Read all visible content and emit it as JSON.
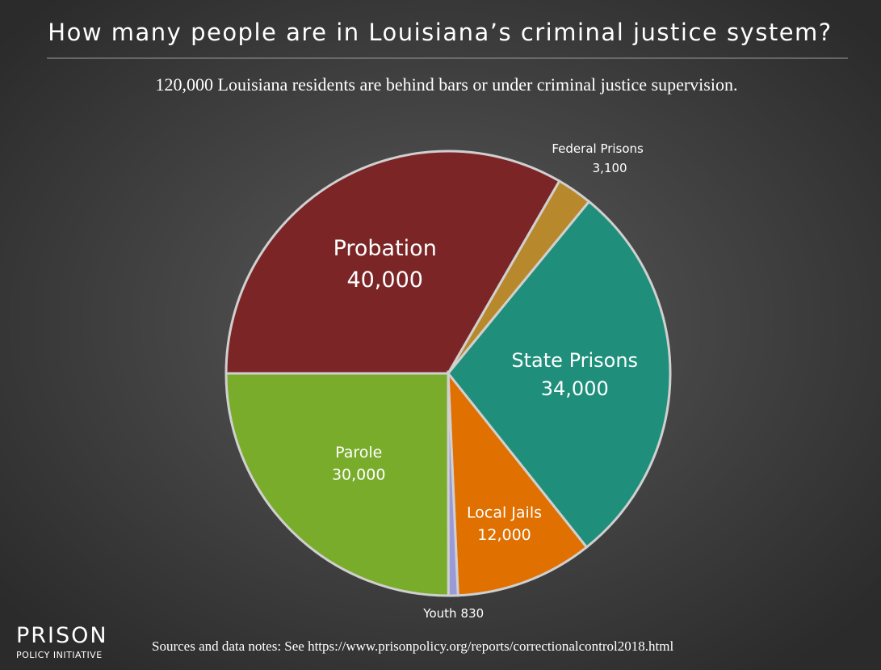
{
  "chart_data": {
    "type": "pie",
    "title": "How many people are in Louisiana’s criminal justice system?",
    "subtitle": "120,000 Louisiana residents are behind bars or under criminal justice supervision.",
    "categories": [
      "Probation",
      "Federal Prisons",
      "State Prisons",
      "Local Jails",
      "Youth",
      "Parole"
    ],
    "values": [
      40000,
      3100,
      34000,
      12000,
      830,
      30000
    ],
    "value_labels": [
      "40,000",
      "3,100",
      "34,000",
      "12,000",
      "830",
      "30,000"
    ],
    "colors": [
      "#7b2526",
      "#b8892c",
      "#1f8f7b",
      "#e07000",
      "#9b9ad9",
      "#79ac2b"
    ],
    "logo": {
      "name": "PRISON",
      "subname": "POLICY INITIATIVE"
    },
    "source": "Sources and data notes: See https://www.prisonpolicy.org/reports/correctionalcontrol2018.html"
  }
}
